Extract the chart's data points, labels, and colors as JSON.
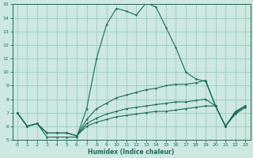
{
  "xlabel": "Humidex (Indice chaleur)",
  "bg_color": "#cce8e0",
  "grid_color": "#99ccbb",
  "line_color": "#1a6b5a",
  "xlim": [
    -0.5,
    23.5
  ],
  "ylim": [
    5,
    15
  ],
  "xticks": [
    0,
    1,
    2,
    3,
    4,
    5,
    6,
    7,
    8,
    9,
    10,
    11,
    12,
    13,
    14,
    15,
    16,
    17,
    18,
    19,
    20,
    21,
    22,
    23
  ],
  "yticks": [
    5,
    6,
    7,
    8,
    9,
    10,
    11,
    12,
    13,
    14,
    15
  ],
  "line1_x": [
    0,
    1,
    2,
    3,
    4,
    5,
    6,
    7,
    8,
    9,
    10,
    11,
    12,
    13,
    14,
    15,
    16,
    17,
    18,
    19,
    20,
    21,
    22,
    23
  ],
  "line1_y": [
    7.0,
    6.0,
    6.2,
    5.2,
    5.2,
    5.2,
    5.2,
    7.3,
    11.0,
    13.5,
    14.7,
    14.5,
    14.2,
    15.1,
    14.8,
    13.3,
    11.8,
    10.0,
    9.5,
    9.3,
    7.5,
    6.0,
    7.0,
    7.5
  ],
  "line2_x": [
    0,
    1,
    2,
    3,
    4,
    5,
    6,
    7,
    8,
    9,
    10,
    11,
    12,
    13,
    14,
    15,
    16,
    17,
    18,
    19,
    20,
    21,
    22,
    23
  ],
  "line2_y": [
    7.0,
    6.0,
    6.2,
    5.5,
    5.5,
    5.5,
    5.3,
    6.5,
    7.3,
    7.7,
    8.1,
    8.3,
    8.5,
    8.7,
    8.8,
    9.0,
    9.1,
    9.1,
    9.2,
    9.4,
    7.5,
    6.0,
    7.1,
    7.5
  ],
  "line3_x": [
    0,
    1,
    2,
    3,
    4,
    5,
    6,
    7,
    8,
    9,
    10,
    11,
    12,
    13,
    14,
    15,
    16,
    17,
    18,
    19,
    20,
    21,
    22,
    23
  ],
  "line3_y": [
    7.0,
    6.0,
    6.2,
    5.5,
    5.5,
    5.5,
    5.3,
    6.2,
    6.6,
    6.9,
    7.1,
    7.3,
    7.4,
    7.5,
    7.6,
    7.7,
    7.8,
    7.8,
    7.9,
    8.0,
    7.5,
    6.0,
    7.0,
    7.5
  ],
  "line4_x": [
    0,
    1,
    2,
    3,
    4,
    5,
    6,
    7,
    8,
    9,
    10,
    11,
    12,
    13,
    14,
    15,
    16,
    17,
    18,
    19,
    20,
    21,
    22,
    23
  ],
  "line4_y": [
    7.0,
    6.0,
    6.2,
    5.5,
    5.5,
    5.5,
    5.3,
    6.0,
    6.3,
    6.5,
    6.7,
    6.8,
    6.9,
    7.0,
    7.1,
    7.1,
    7.2,
    7.3,
    7.4,
    7.5,
    7.5,
    6.0,
    6.9,
    7.4
  ]
}
